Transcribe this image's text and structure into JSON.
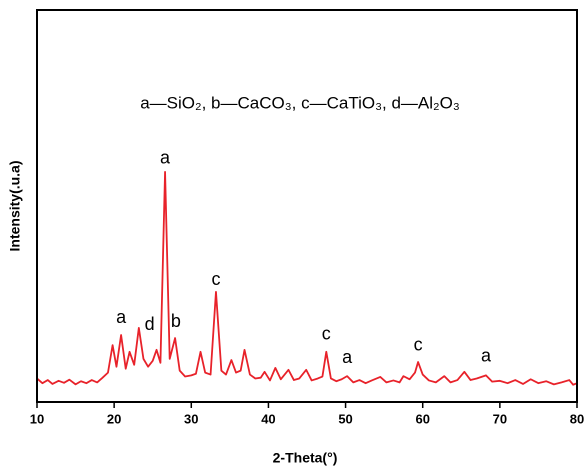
{
  "chart_data": {
    "type": "line",
    "legend_text": "a—SiO₂, b—CaCO₃, c—CaTiO₃, d—Al₂O₃",
    "xlabel": "2-Theta(°)",
    "ylabel": "Intensity(.u.a)",
    "xlim": [
      10,
      80
    ],
    "xticks": [
      10,
      20,
      30,
      40,
      50,
      60,
      70,
      80
    ],
    "ylim": [
      0,
      100
    ],
    "series": [
      {
        "color": "#e8222a",
        "x": [
          10,
          10.7,
          11.4,
          12,
          12.8,
          13.5,
          14.2,
          15,
          15.7,
          16.4,
          17.1,
          17.8,
          18.5,
          19.2,
          19.8,
          20.3,
          20.9,
          21.5,
          22,
          22.6,
          23.2,
          23.8,
          24.4,
          25,
          25.5,
          26,
          26.6,
          27.2,
          27.9,
          28.5,
          29.2,
          30,
          30.6,
          31.2,
          31.8,
          32.5,
          33.2,
          33.9,
          34.5,
          35.2,
          35.8,
          36.4,
          36.9,
          37.6,
          38.3,
          39,
          39.5,
          40.2,
          40.9,
          41.6,
          42.6,
          43.3,
          44,
          44.9,
          45.6,
          46.4,
          47,
          47.5,
          48.1,
          48.8,
          49.5,
          50.2,
          51,
          51.8,
          52.6,
          53.4,
          54.5,
          55.3,
          56.2,
          57,
          57.5,
          58.3,
          59,
          59.4,
          60,
          60.8,
          61.7,
          62.8,
          63.6,
          64.5,
          65.4,
          66.2,
          67,
          68.2,
          69,
          70,
          71,
          72,
          73,
          74,
          75,
          76,
          77,
          78,
          79,
          79.5,
          80
        ],
        "values": [
          6.0,
          4.8,
          5.6,
          4.6,
          5.4,
          4.9,
          5.7,
          4.5,
          5.3,
          4.8,
          5.6,
          5.0,
          6.2,
          7.5,
          14.5,
          9.0,
          17.1,
          8.5,
          12.8,
          9.5,
          18.9,
          11.0,
          9.0,
          10.5,
          13.3,
          10.0,
          58.7,
          11.0,
          16.3,
          8.0,
          6.5,
          6.8,
          7.2,
          12.8,
          7.5,
          7.0,
          28.1,
          8.0,
          7.0,
          10.7,
          7.5,
          8.0,
          13.3,
          7.0,
          6.0,
          6.2,
          7.7,
          5.5,
          8.7,
          5.8,
          8.2,
          5.6,
          6.0,
          8.2,
          5.5,
          6.0,
          6.5,
          12.8,
          6.0,
          5.3,
          5.8,
          6.6,
          5.0,
          5.6,
          4.8,
          5.5,
          6.4,
          5.0,
          5.5,
          5.0,
          6.6,
          5.8,
          7.5,
          10.2,
          7.0,
          5.5,
          5.0,
          6.6,
          5.0,
          5.6,
          7.7,
          5.6,
          6.0,
          6.8,
          5.2,
          5.4,
          4.8,
          5.6,
          4.6,
          5.8,
          4.8,
          5.3,
          4.5,
          5.0,
          5.6,
          4.4,
          4.8
        ]
      }
    ],
    "annotations": [
      {
        "text": "a",
        "x": 26.6,
        "y": 62
      },
      {
        "text": "c",
        "x": 33.2,
        "y": 31.1
      },
      {
        "text": "a",
        "x": 20.9,
        "y": 21.4
      },
      {
        "text": "d",
        "x": 24.6,
        "y": 19.6
      },
      {
        "text": "b",
        "x": 28.0,
        "y": 20.4
      },
      {
        "text": "c",
        "x": 47.5,
        "y": 17.1
      },
      {
        "text": "a",
        "x": 50.2,
        "y": 11.2
      },
      {
        "text": "c",
        "x": 59.4,
        "y": 14.3
      },
      {
        "text": "a",
        "x": 68.2,
        "y": 11.5
      }
    ]
  }
}
